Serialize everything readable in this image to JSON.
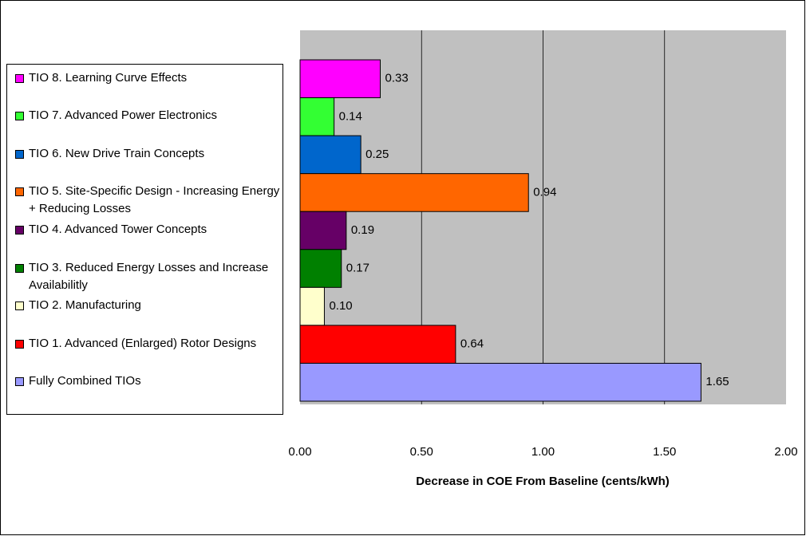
{
  "chart_data": {
    "type": "bar",
    "orientation": "horizontal",
    "categories": [
      "TIO 8. Learning Curve Effects",
      "TIO 7. Advanced Power Electronics",
      "TIO 6. New Drive Train Concepts",
      "TIO 5. Site-Specific Design - Increasing Energy + Reducing Losses",
      "TIO 4. Advanced Tower Concepts",
      "TIO 3. Reduced Energy Losses and Increase Availabilitly",
      "TIO 2. Manufacturing",
      "TIO 1. Advanced (Enlarged) Rotor Designs",
      "Fully Combined TIOs"
    ],
    "values": [
      0.33,
      0.14,
      0.25,
      0.94,
      0.19,
      0.17,
      0.1,
      0.64,
      1.65
    ],
    "value_labels": [
      "0.33",
      "0.14",
      "0.25",
      "0.94",
      "0.19",
      "0.17",
      "0.10",
      "0.64",
      "1.65"
    ],
    "colors": [
      "#ff00ff",
      "#33ff33",
      "#0066cc",
      "#ff6600",
      "#660066",
      "#008000",
      "#ffffcc",
      "#ff0000",
      "#9999ff"
    ],
    "x_label": "Decrease in COE From Baseline (cents/kWh)",
    "xlim": [
      0,
      2
    ],
    "xticks": [
      {
        "value": 0,
        "label": "0.00"
      },
      {
        "value": 0.5,
        "label": "0.50"
      },
      {
        "value": 1,
        "label": "1.00"
      },
      {
        "value": 1.5,
        "label": "1.50"
      },
      {
        "value": 2,
        "label": "2.00"
      }
    ],
    "grid": true,
    "legend": "left"
  }
}
